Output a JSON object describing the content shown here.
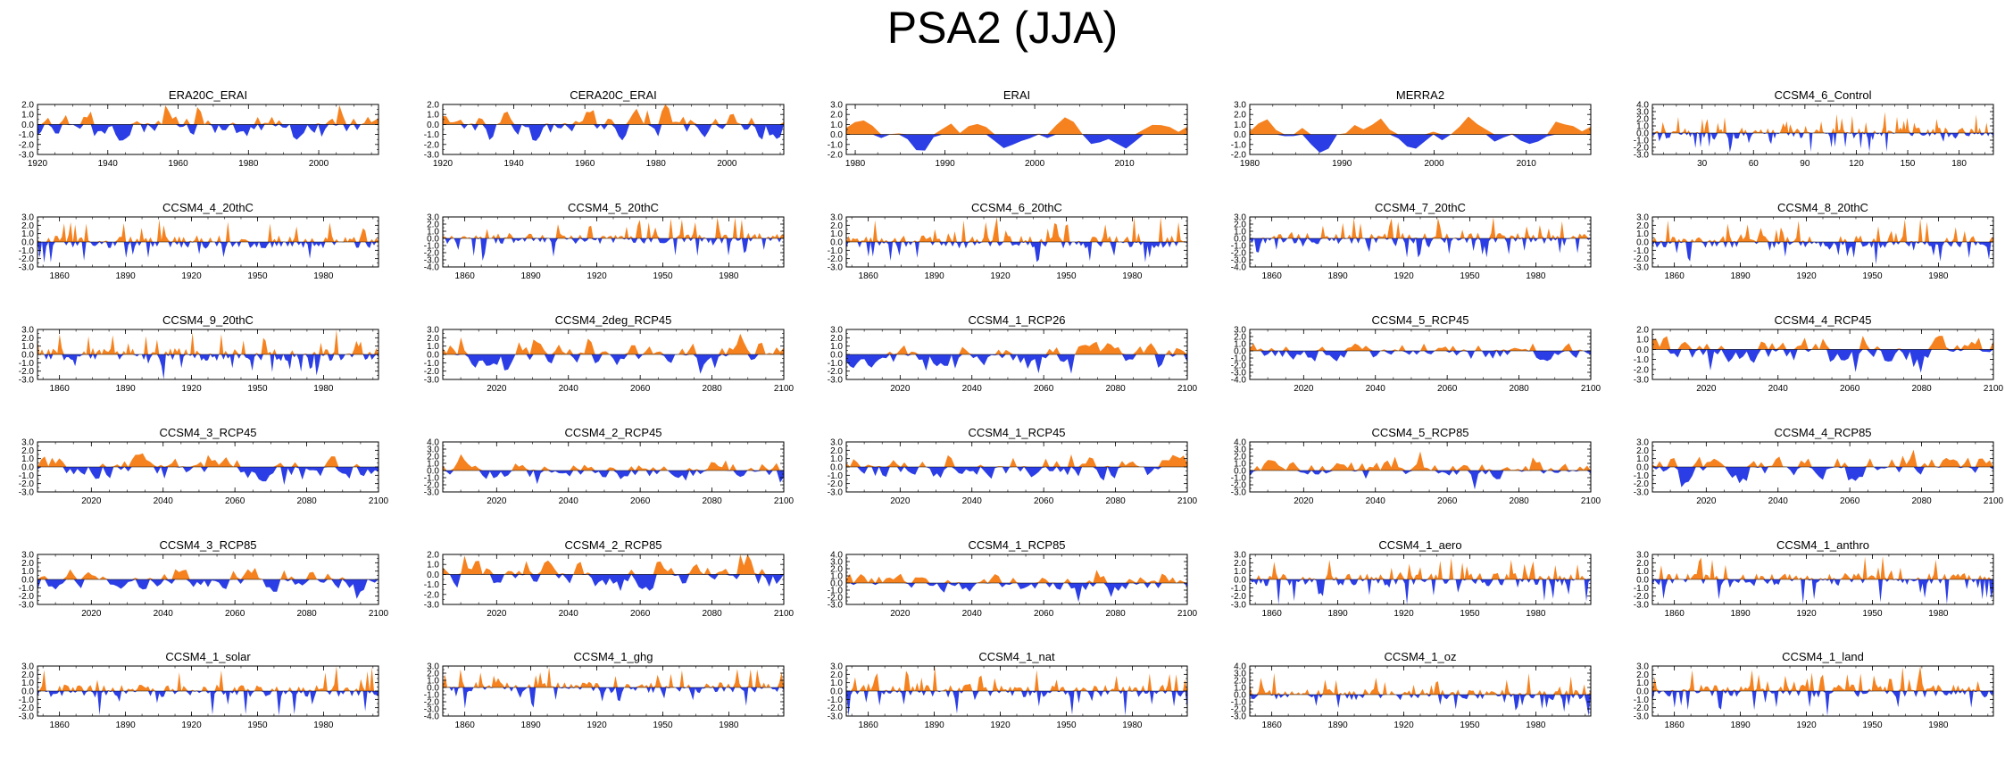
{
  "title": "PSA2 (JJA)",
  "colors": {
    "positive": "#f5821f",
    "negative": "#2b3ee6",
    "axis": "#000000"
  },
  "chart_data": [
    {
      "type": "area",
      "title": "ERA20C_ERAI",
      "xlim": [
        1920,
        2017
      ],
      "ylim": [
        -3.0,
        2.0
      ],
      "yticks": [
        "2.0",
        "1.0",
        "0.0",
        "-1.0",
        "-2.0",
        "-3.0"
      ],
      "xticks": [
        1920,
        1940,
        1960,
        1980,
        2000
      ],
      "series_style": "dense",
      "seed": 3
    },
    {
      "type": "area",
      "title": "CERA20C_ERAI",
      "xlim": [
        1920,
        2016
      ],
      "ylim": [
        -3.0,
        2.0
      ],
      "yticks": [
        "2.0",
        "1.0",
        "0.0",
        "-1.0",
        "-2.0",
        "-3.0"
      ],
      "xticks": [
        1920,
        1940,
        1960,
        1980,
        2000
      ],
      "series_style": "dense",
      "seed": 7
    },
    {
      "type": "area",
      "title": "ERAI",
      "xlim": [
        1979,
        2017
      ],
      "ylim": [
        -2.0,
        3.0
      ],
      "yticks": [
        "3.0",
        "2.0",
        "1.0",
        "0.0",
        "-1.0",
        "-2.0"
      ],
      "xticks": [
        1980,
        1990,
        2000,
        2010
      ],
      "series_style": "smooth",
      "seed": 11
    },
    {
      "type": "area",
      "title": "MERRA2",
      "xlim": [
        1980,
        2017
      ],
      "ylim": [
        -2.0,
        3.0
      ],
      "yticks": [
        "3.0",
        "2.0",
        "1.0",
        "0.0",
        "-1.0",
        "-2.0"
      ],
      "xticks": [
        1980,
        1990,
        2000,
        2010
      ],
      "series_style": "smooth",
      "seed": 13
    },
    {
      "type": "area",
      "title": "CCSM4_6_Control",
      "xlim": [
        1,
        200
      ],
      "ylim": [
        -3.0,
        4.0
      ],
      "yticks": [
        "4.0",
        "3.0",
        "2.0",
        "1.0",
        "0.0",
        "-1.0",
        "-2.0",
        "-3.0"
      ],
      "xticks": [
        30,
        60,
        90,
        120,
        150,
        180
      ],
      "series_style": "spiky",
      "seed": 17
    },
    {
      "type": "area",
      "title": "CCSM4_4_20thC",
      "xlim": [
        1850,
        2005
      ],
      "ylim": [
        -3.0,
        3.0
      ],
      "yticks": [
        "3.0",
        "2.0",
        "1.0",
        "0.0",
        "-1.0",
        "-2.0",
        "-3.0"
      ],
      "xticks": [
        1860,
        1890,
        1920,
        1950,
        1980
      ],
      "series_style": "spiky",
      "seed": 19
    },
    {
      "type": "area",
      "title": "CCSM4_5_20thC",
      "xlim": [
        1850,
        2005
      ],
      "ylim": [
        -4.0,
        3.0
      ],
      "yticks": [
        "3.0",
        "2.0",
        "1.0",
        "0.0",
        "-1.0",
        "-2.0",
        "-3.0",
        "-4.0"
      ],
      "xticks": [
        1860,
        1890,
        1920,
        1950,
        1980
      ],
      "series_style": "spiky",
      "seed": 23
    },
    {
      "type": "area",
      "title": "CCSM4_6_20thC",
      "xlim": [
        1850,
        2005
      ],
      "ylim": [
        -3.0,
        3.0
      ],
      "yticks": [
        "3.0",
        "2.0",
        "1.0",
        "0.0",
        "-1.0",
        "-2.0",
        "-3.0"
      ],
      "xticks": [
        1860,
        1890,
        1920,
        1950,
        1980
      ],
      "series_style": "spiky",
      "seed": 29
    },
    {
      "type": "area",
      "title": "CCSM4_7_20thC",
      "xlim": [
        1850,
        2005
      ],
      "ylim": [
        -4.0,
        3.0
      ],
      "yticks": [
        "3.0",
        "2.0",
        "1.0",
        "0.0",
        "-1.0",
        "-2.0",
        "-3.0",
        "-4.0"
      ],
      "xticks": [
        1860,
        1890,
        1920,
        1950,
        1980
      ],
      "series_style": "spiky",
      "seed": 31
    },
    {
      "type": "area",
      "title": "CCSM4_8_20thC",
      "xlim": [
        1850,
        2005
      ],
      "ylim": [
        -3.0,
        3.0
      ],
      "yticks": [
        "3.0",
        "2.0",
        "1.0",
        "0.0",
        "-1.0",
        "-2.0",
        "-3.0"
      ],
      "xticks": [
        1860,
        1890,
        1920,
        1950,
        1980
      ],
      "series_style": "spiky",
      "seed": 37
    },
    {
      "type": "area",
      "title": "CCSM4_9_20thC",
      "xlim": [
        1850,
        2005
      ],
      "ylim": [
        -3.0,
        3.0
      ],
      "yticks": [
        "3.0",
        "2.0",
        "1.0",
        "0.0",
        "-1.0",
        "-2.0",
        "-3.0"
      ],
      "xticks": [
        1860,
        1890,
        1920,
        1950,
        1980
      ],
      "series_style": "spiky",
      "seed": 41
    },
    {
      "type": "area",
      "title": "CCSM4_2deg_RCP45",
      "xlim": [
        2005,
        2100
      ],
      "ylim": [
        -3.0,
        3.0
      ],
      "yticks": [
        "3.0",
        "2.0",
        "1.0",
        "0.0",
        "-1.0",
        "-2.0",
        "-3.0"
      ],
      "xticks": [
        2020,
        2040,
        2060,
        2080,
        2100
      ],
      "series_style": "dense",
      "seed": 43
    },
    {
      "type": "area",
      "title": "CCSM4_1_RCP26",
      "xlim": [
        2005,
        2100
      ],
      "ylim": [
        -3.0,
        3.0
      ],
      "yticks": [
        "3.0",
        "2.0",
        "1.0",
        "0.0",
        "-1.0",
        "-2.0",
        "-3.0"
      ],
      "xticks": [
        2020,
        2040,
        2060,
        2080,
        2100
      ],
      "series_style": "dense",
      "seed": 47
    },
    {
      "type": "area",
      "title": "CCSM4_5_RCP45",
      "xlim": [
        2005,
        2100
      ],
      "ylim": [
        -4.0,
        3.0
      ],
      "yticks": [
        "3.0",
        "2.0",
        "1.0",
        "0.0",
        "-1.0",
        "-2.0",
        "-3.0",
        "-4.0"
      ],
      "xticks": [
        2020,
        2040,
        2060,
        2080,
        2100
      ],
      "series_style": "dense",
      "seed": 53
    },
    {
      "type": "area",
      "title": "CCSM4_4_RCP45",
      "xlim": [
        2005,
        2100
      ],
      "ylim": [
        -3.0,
        2.0
      ],
      "yticks": [
        "2.0",
        "1.0",
        "0.0",
        "-1.0",
        "-2.0",
        "-3.0"
      ],
      "xticks": [
        2020,
        2040,
        2060,
        2080,
        2100
      ],
      "series_style": "dense",
      "seed": 59
    },
    {
      "type": "area",
      "title": "CCSM4_3_RCP45",
      "xlim": [
        2005,
        2100
      ],
      "ylim": [
        -3.0,
        3.0
      ],
      "yticks": [
        "3.0",
        "2.0",
        "1.0",
        "0.0",
        "-1.0",
        "-2.0",
        "-3.0"
      ],
      "xticks": [
        2020,
        2040,
        2060,
        2080,
        2100
      ],
      "series_style": "dense",
      "seed": 61
    },
    {
      "type": "area",
      "title": "CCSM4_2_RCP45",
      "xlim": [
        2005,
        2100
      ],
      "ylim": [
        -3.0,
        4.0
      ],
      "yticks": [
        "4.0",
        "3.0",
        "2.0",
        "1.0",
        "0.0",
        "-1.0",
        "-2.0",
        "-3.0"
      ],
      "xticks": [
        2020,
        2040,
        2060,
        2080,
        2100
      ],
      "series_style": "dense",
      "seed": 67
    },
    {
      "type": "area",
      "title": "CCSM4_1_RCP45",
      "xlim": [
        2005,
        2100
      ],
      "ylim": [
        -3.0,
        3.0
      ],
      "yticks": [
        "3.0",
        "2.0",
        "1.0",
        "0.0",
        "-1.0",
        "-2.0",
        "-3.0"
      ],
      "xticks": [
        2020,
        2040,
        2060,
        2080,
        2100
      ],
      "series_style": "dense",
      "seed": 71
    },
    {
      "type": "area",
      "title": "CCSM4_5_RCP85",
      "xlim": [
        2005,
        2100
      ],
      "ylim": [
        -3.0,
        4.0
      ],
      "yticks": [
        "4.0",
        "3.0",
        "2.0",
        "1.0",
        "0.0",
        "-1.0",
        "-2.0",
        "-3.0"
      ],
      "xticks": [
        2020,
        2040,
        2060,
        2080,
        2100
      ],
      "series_style": "dense",
      "seed": 73
    },
    {
      "type": "area",
      "title": "CCSM4_4_RCP85",
      "xlim": [
        2005,
        2100
      ],
      "ylim": [
        -3.0,
        3.0
      ],
      "yticks": [
        "3.0",
        "2.0",
        "1.0",
        "0.0",
        "-1.0",
        "-2.0",
        "-3.0"
      ],
      "xticks": [
        2020,
        2040,
        2060,
        2080,
        2100
      ],
      "series_style": "dense",
      "seed": 79
    },
    {
      "type": "area",
      "title": "CCSM4_3_RCP85",
      "xlim": [
        2005,
        2100
      ],
      "ylim": [
        -3.0,
        3.0
      ],
      "yticks": [
        "3.0",
        "2.0",
        "1.0",
        "0.0",
        "-1.0",
        "-2.0",
        "-3.0"
      ],
      "xticks": [
        2020,
        2040,
        2060,
        2080,
        2100
      ],
      "series_style": "dense",
      "seed": 83
    },
    {
      "type": "area",
      "title": "CCSM4_2_RCP85",
      "xlim": [
        2005,
        2100
      ],
      "ylim": [
        -3.0,
        2.0
      ],
      "yticks": [
        "2.0",
        "1.0",
        "0.0",
        "-1.0",
        "-2.0",
        "-3.0"
      ],
      "xticks": [
        2020,
        2040,
        2060,
        2080,
        2100
      ],
      "series_style": "dense",
      "seed": 89
    },
    {
      "type": "area",
      "title": "CCSM4_1_RCP85",
      "xlim": [
        2005,
        2100
      ],
      "ylim": [
        -3.0,
        4.0
      ],
      "yticks": [
        "4.0",
        "3.0",
        "2.0",
        "1.0",
        "0.0",
        "-1.0",
        "-2.0",
        "-3.0"
      ],
      "xticks": [
        2020,
        2040,
        2060,
        2080,
        2100
      ],
      "series_style": "dense",
      "seed": 97
    },
    {
      "type": "area",
      "title": "CCSM4_1_aero",
      "xlim": [
        1850,
        2005
      ],
      "ylim": [
        -3.0,
        3.0
      ],
      "yticks": [
        "3.0",
        "2.0",
        "1.0",
        "0.0",
        "-1.0",
        "-2.0",
        "-3.0"
      ],
      "xticks": [
        1860,
        1890,
        1920,
        1950,
        1980
      ],
      "series_style": "spiky",
      "seed": 101
    },
    {
      "type": "area",
      "title": "CCSM4_1_anthro",
      "xlim": [
        1850,
        2005
      ],
      "ylim": [
        -3.0,
        3.0
      ],
      "yticks": [
        "3.0",
        "2.0",
        "1.0",
        "0.0",
        "-1.0",
        "-2.0",
        "-3.0"
      ],
      "xticks": [
        1860,
        1890,
        1920,
        1950,
        1980
      ],
      "series_style": "spiky",
      "seed": 103
    },
    {
      "type": "area",
      "title": "CCSM4_1_solar",
      "xlim": [
        1850,
        2005
      ],
      "ylim": [
        -3.0,
        3.0
      ],
      "yticks": [
        "3.0",
        "2.0",
        "1.0",
        "0.0",
        "-1.0",
        "-2.0",
        "-3.0"
      ],
      "xticks": [
        1860,
        1890,
        1920,
        1950,
        1980
      ],
      "series_style": "spiky",
      "seed": 107
    },
    {
      "type": "area",
      "title": "CCSM4_1_ghg",
      "xlim": [
        1850,
        2005
      ],
      "ylim": [
        -4.0,
        3.0
      ],
      "yticks": [
        "3.0",
        "2.0",
        "1.0",
        "0.0",
        "-1.0",
        "-2.0",
        "-3.0",
        "-4.0"
      ],
      "xticks": [
        1860,
        1890,
        1920,
        1950,
        1980
      ],
      "series_style": "spiky",
      "seed": 109
    },
    {
      "type": "area",
      "title": "CCSM4_1_nat",
      "xlim": [
        1850,
        2005
      ],
      "ylim": [
        -3.0,
        3.0
      ],
      "yticks": [
        "3.0",
        "2.0",
        "1.0",
        "0.0",
        "-1.0",
        "-2.0",
        "-3.0"
      ],
      "xticks": [
        1860,
        1890,
        1920,
        1950,
        1980
      ],
      "series_style": "spiky",
      "seed": 113
    },
    {
      "type": "area",
      "title": "CCSM4_1_oz",
      "xlim": [
        1850,
        2005
      ],
      "ylim": [
        -3.0,
        4.0
      ],
      "yticks": [
        "4.0",
        "3.0",
        "2.0",
        "1.0",
        "0.0",
        "-1.0",
        "-2.0",
        "-3.0"
      ],
      "xticks": [
        1860,
        1890,
        1920,
        1950,
        1980
      ],
      "series_style": "spiky",
      "seed": 127
    },
    {
      "type": "area",
      "title": "CCSM4_1_land",
      "xlim": [
        1850,
        2005
      ],
      "ylim": [
        -3.0,
        3.0
      ],
      "yticks": [
        "3.0",
        "2.0",
        "1.0",
        "0.0",
        "-1.0",
        "-2.0",
        "-3.0"
      ],
      "xticks": [
        1860,
        1890,
        1920,
        1950,
        1980
      ],
      "series_style": "spiky",
      "seed": 131
    }
  ]
}
